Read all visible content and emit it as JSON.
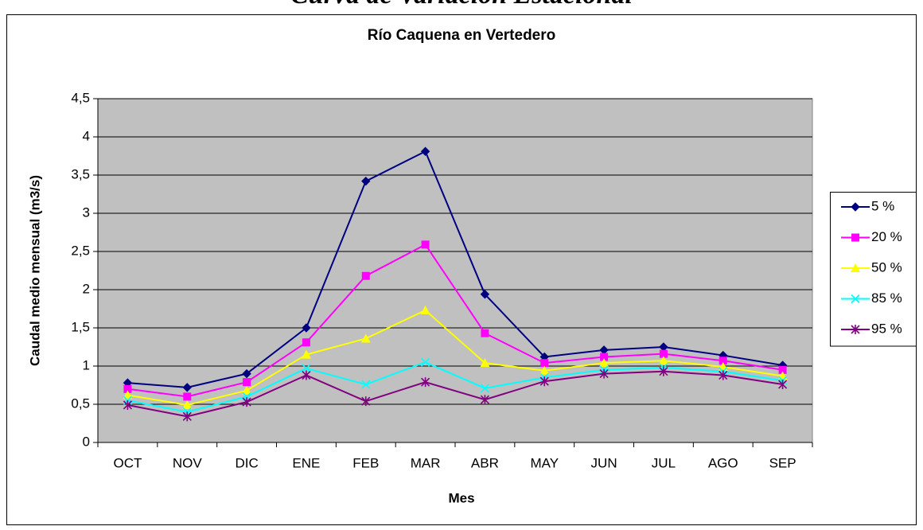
{
  "chart_data": {
    "type": "line",
    "suptitle": "Curva de Variación Estacional",
    "title": "Río Caquena en Vertedero",
    "x_label": "Mes",
    "y_label": "Caudal medio mensual (m3/s)",
    "categories": [
      "OCT",
      "NOV",
      "DIC",
      "ENE",
      "FEB",
      "MAR",
      "ABR",
      "MAY",
      "JUN",
      "JUL",
      "AGO",
      "SEP"
    ],
    "series": [
      {
        "name": "5 %",
        "color": "#000080",
        "marker": "diamond",
        "values": [
          0.78,
          0.72,
          0.9,
          1.5,
          3.42,
          3.81,
          1.94,
          1.12,
          1.21,
          1.25,
          1.14,
          1.01
        ]
      },
      {
        "name": "20 %",
        "color": "#ff00ff",
        "marker": "square",
        "values": [
          0.7,
          0.6,
          0.79,
          1.31,
          2.18,
          2.59,
          1.43,
          1.04,
          1.12,
          1.16,
          1.07,
          0.95
        ]
      },
      {
        "name": "50 %",
        "color": "#ffff00",
        "marker": "triangle",
        "values": [
          0.62,
          0.49,
          0.68,
          1.15,
          1.36,
          1.73,
          1.04,
          0.94,
          1.04,
          1.07,
          0.99,
          0.87
        ]
      },
      {
        "name": "85 %",
        "color": "#00ffff",
        "marker": "x",
        "values": [
          0.55,
          0.4,
          0.6,
          0.97,
          0.76,
          1.05,
          0.71,
          0.85,
          0.95,
          0.98,
          0.93,
          0.81
        ]
      },
      {
        "name": "95 %",
        "color": "#800080",
        "marker": "asterisk",
        "values": [
          0.49,
          0.34,
          0.53,
          0.88,
          0.54,
          0.79,
          0.56,
          0.8,
          0.9,
          0.93,
          0.88,
          0.76
        ]
      }
    ],
    "ylim": [
      0,
      4.5
    ],
    "yticks": [
      0,
      {
        "value": 0.5,
        "label": "0,5"
      },
      1,
      {
        "value": 1.5,
        "label": "1,5"
      },
      2,
      {
        "value": 2.5,
        "label": "2,5"
      },
      3,
      {
        "value": 3.5,
        "label": "3,5"
      },
      4,
      {
        "value": 4.5,
        "label": "4,5"
      }
    ],
    "grid": true,
    "plot_background": "#c0c0c0",
    "legend": "right"
  }
}
